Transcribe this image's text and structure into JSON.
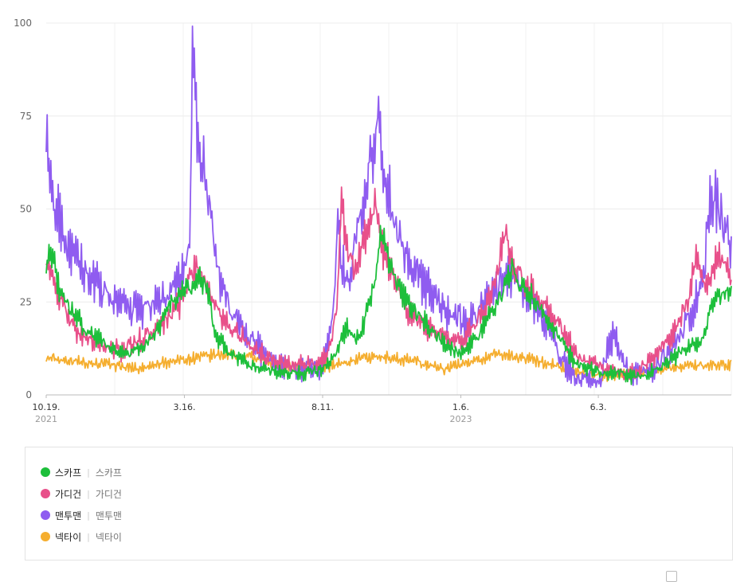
{
  "chart_data": {
    "type": "line",
    "ylim": [
      0,
      100
    ],
    "yticks": [
      0,
      25,
      50,
      75,
      100
    ],
    "grid": true,
    "xticks": [
      {
        "label": "10.19.",
        "year": "2021",
        "t": 0
      },
      {
        "label": "3.16.",
        "year": "",
        "t": 0.2017
      },
      {
        "label": "8.11.",
        "year": "",
        "t": 0.4035
      },
      {
        "label": "1.6.",
        "year": "2023",
        "t": 0.6052
      },
      {
        "label": "6.3.",
        "year": "",
        "t": 0.8059
      }
    ],
    "series": [
      {
        "name": "스카프",
        "color": "#1dbf3b",
        "noise": 2.0,
        "freq": 3.0,
        "points": [
          [
            0,
            35
          ],
          [
            0.006,
            40
          ],
          [
            0.02,
            27
          ],
          [
            0.04,
            22
          ],
          [
            0.06,
            17
          ],
          [
            0.08,
            15
          ],
          [
            0.1,
            12
          ],
          [
            0.12,
            11
          ],
          [
            0.14,
            13
          ],
          [
            0.16,
            17
          ],
          [
            0.18,
            24
          ],
          [
            0.2,
            28
          ],
          [
            0.22,
            30
          ],
          [
            0.23,
            31
          ],
          [
            0.24,
            25
          ],
          [
            0.245,
            17
          ],
          [
            0.26,
            13
          ],
          [
            0.28,
            10
          ],
          [
            0.3,
            8
          ],
          [
            0.32,
            7
          ],
          [
            0.34,
            6
          ],
          [
            0.36,
            6
          ],
          [
            0.38,
            6
          ],
          [
            0.4,
            7
          ],
          [
            0.42,
            10
          ],
          [
            0.43,
            15
          ],
          [
            0.44,
            18
          ],
          [
            0.45,
            15
          ],
          [
            0.46,
            17
          ],
          [
            0.47,
            24
          ],
          [
            0.48,
            30
          ],
          [
            0.488,
            45
          ],
          [
            0.495,
            40
          ],
          [
            0.51,
            30
          ],
          [
            0.53,
            24
          ],
          [
            0.55,
            20
          ],
          [
            0.57,
            16
          ],
          [
            0.59,
            12
          ],
          [
            0.61,
            11
          ],
          [
            0.63,
            16
          ],
          [
            0.65,
            22
          ],
          [
            0.67,
            29
          ],
          [
            0.68,
            35
          ],
          [
            0.69,
            30
          ],
          [
            0.71,
            26
          ],
          [
            0.73,
            20
          ],
          [
            0.75,
            15
          ],
          [
            0.77,
            9
          ],
          [
            0.79,
            7
          ],
          [
            0.81,
            6
          ],
          [
            0.83,
            6
          ],
          [
            0.85,
            5
          ],
          [
            0.87,
            5
          ],
          [
            0.89,
            7
          ],
          [
            0.91,
            9
          ],
          [
            0.93,
            12
          ],
          [
            0.95,
            14
          ],
          [
            0.96,
            16
          ],
          [
            0.97,
            24
          ],
          [
            0.98,
            27
          ],
          [
            1.0,
            27
          ]
        ]
      },
      {
        "name": "가디건",
        "color": "#e8508a",
        "noise": 2.5,
        "freq": 3.0,
        "points": [
          [
            0,
            38
          ],
          [
            0.01,
            30
          ],
          [
            0.03,
            22
          ],
          [
            0.05,
            16
          ],
          [
            0.07,
            14
          ],
          [
            0.09,
            13
          ],
          [
            0.11,
            12
          ],
          [
            0.13,
            14
          ],
          [
            0.15,
            16
          ],
          [
            0.17,
            19
          ],
          [
            0.19,
            23
          ],
          [
            0.2,
            27
          ],
          [
            0.21,
            32
          ],
          [
            0.22,
            34
          ],
          [
            0.23,
            32
          ],
          [
            0.24,
            27
          ],
          [
            0.25,
            23
          ],
          [
            0.26,
            20
          ],
          [
            0.28,
            16
          ],
          [
            0.3,
            13
          ],
          [
            0.32,
            10
          ],
          [
            0.34,
            9
          ],
          [
            0.36,
            8
          ],
          [
            0.38,
            8
          ],
          [
            0.4,
            8
          ],
          [
            0.41,
            11
          ],
          [
            0.42,
            18
          ],
          [
            0.425,
            26
          ],
          [
            0.43,
            52
          ],
          [
            0.44,
            38
          ],
          [
            0.45,
            33
          ],
          [
            0.46,
            40
          ],
          [
            0.47,
            45
          ],
          [
            0.48,
            52
          ],
          [
            0.49,
            40
          ],
          [
            0.51,
            30
          ],
          [
            0.53,
            22
          ],
          [
            0.55,
            19
          ],
          [
            0.57,
            17
          ],
          [
            0.59,
            14
          ],
          [
            0.61,
            15
          ],
          [
            0.63,
            20
          ],
          [
            0.65,
            27
          ],
          [
            0.66,
            35
          ],
          [
            0.67,
            44
          ],
          [
            0.68,
            35
          ],
          [
            0.7,
            30
          ],
          [
            0.72,
            25
          ],
          [
            0.74,
            22
          ],
          [
            0.76,
            15
          ],
          [
            0.78,
            10
          ],
          [
            0.8,
            8
          ],
          [
            0.82,
            7
          ],
          [
            0.84,
            6
          ],
          [
            0.86,
            6
          ],
          [
            0.88,
            9
          ],
          [
            0.9,
            13
          ],
          [
            0.92,
            18
          ],
          [
            0.94,
            27
          ],
          [
            0.95,
            38
          ],
          [
            0.96,
            30
          ],
          [
            0.97,
            32
          ],
          [
            0.98,
            38
          ],
          [
            0.99,
            36
          ],
          [
            1.0,
            31
          ]
        ]
      },
      {
        "name": "맨투맨",
        "color": "#8f5cf0",
        "noise": 3.5,
        "freq": 3.0,
        "points": [
          [
            0,
            72
          ],
          [
            0.005,
            58
          ],
          [
            0.01,
            50
          ],
          [
            0.02,
            48
          ],
          [
            0.03,
            40
          ],
          [
            0.04,
            37
          ],
          [
            0.06,
            32
          ],
          [
            0.08,
            28
          ],
          [
            0.1,
            25
          ],
          [
            0.12,
            23
          ],
          [
            0.14,
            23
          ],
          [
            0.16,
            24
          ],
          [
            0.18,
            27
          ],
          [
            0.19,
            29
          ],
          [
            0.2,
            33
          ],
          [
            0.21,
            40
          ],
          [
            0.214,
            100
          ],
          [
            0.22,
            70
          ],
          [
            0.23,
            60
          ],
          [
            0.24,
            48
          ],
          [
            0.25,
            35
          ],
          [
            0.26,
            28
          ],
          [
            0.28,
            20
          ],
          [
            0.3,
            15
          ],
          [
            0.32,
            10
          ],
          [
            0.34,
            8
          ],
          [
            0.36,
            7
          ],
          [
            0.38,
            7
          ],
          [
            0.4,
            7
          ],
          [
            0.41,
            12
          ],
          [
            0.42,
            22
          ],
          [
            0.425,
            52
          ],
          [
            0.43,
            35
          ],
          [
            0.44,
            30
          ],
          [
            0.45,
            40
          ],
          [
            0.46,
            50
          ],
          [
            0.47,
            60
          ],
          [
            0.48,
            65
          ],
          [
            0.486,
            84
          ],
          [
            0.49,
            60
          ],
          [
            0.5,
            55
          ],
          [
            0.51,
            45
          ],
          [
            0.53,
            36
          ],
          [
            0.55,
            30
          ],
          [
            0.57,
            26
          ],
          [
            0.59,
            22
          ],
          [
            0.61,
            20
          ],
          [
            0.63,
            22
          ],
          [
            0.65,
            27
          ],
          [
            0.67,
            32
          ],
          [
            0.69,
            30
          ],
          [
            0.71,
            25
          ],
          [
            0.73,
            20
          ],
          [
            0.75,
            10
          ],
          [
            0.77,
            5
          ],
          [
            0.79,
            4
          ],
          [
            0.81,
            4
          ],
          [
            0.82,
            13
          ],
          [
            0.83,
            17
          ],
          [
            0.84,
            10
          ],
          [
            0.85,
            6
          ],
          [
            0.87,
            6
          ],
          [
            0.89,
            8
          ],
          [
            0.91,
            12
          ],
          [
            0.93,
            18
          ],
          [
            0.95,
            26
          ],
          [
            0.96,
            33
          ],
          [
            0.97,
            54
          ],
          [
            0.98,
            50
          ],
          [
            0.99,
            45
          ],
          [
            1.0,
            39
          ]
        ]
      },
      {
        "name": "넥타이",
        "color": "#f5ae2f",
        "noise": 1.5,
        "freq": 4.0,
        "points": [
          [
            0,
            10
          ],
          [
            0.1,
            8
          ],
          [
            0.14,
            7
          ],
          [
            0.18,
            9
          ],
          [
            0.22,
            10
          ],
          [
            0.26,
            11
          ],
          [
            0.3,
            10
          ],
          [
            0.34,
            8
          ],
          [
            0.38,
            7
          ],
          [
            0.42,
            8
          ],
          [
            0.46,
            10
          ],
          [
            0.5,
            10
          ],
          [
            0.54,
            9
          ],
          [
            0.58,
            7
          ],
          [
            0.62,
            9
          ],
          [
            0.66,
            11
          ],
          [
            0.7,
            10
          ],
          [
            0.74,
            8
          ],
          [
            0.78,
            6
          ],
          [
            0.82,
            5
          ],
          [
            0.86,
            6
          ],
          [
            0.9,
            7
          ],
          [
            0.94,
            8
          ],
          [
            0.97,
            8
          ],
          [
            1.0,
            8
          ]
        ]
      }
    ]
  },
  "legend": [
    {
      "name": "스카프",
      "keyword": "스카프",
      "color": "#1dbf3b"
    },
    {
      "name": "가디건",
      "keyword": "가디건",
      "color": "#e8508a"
    },
    {
      "name": "맨투맨",
      "keyword": "맨투맨",
      "color": "#8f5cf0"
    },
    {
      "name": "넥타이",
      "keyword": "넥타이",
      "color": "#f5ae2f"
    }
  ]
}
